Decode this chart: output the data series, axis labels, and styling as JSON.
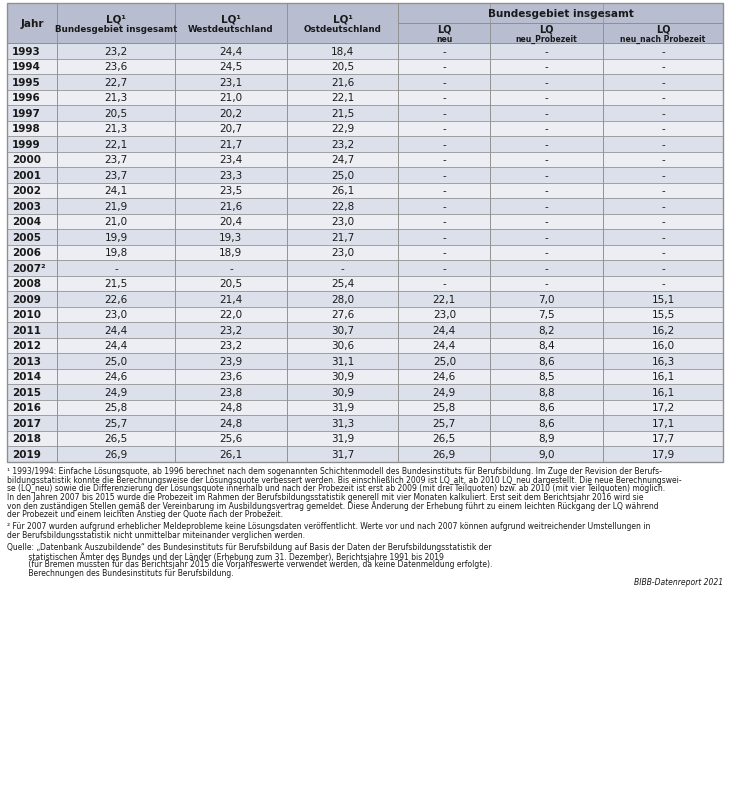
{
  "rows": [
    [
      "1993",
      "23,2",
      "24,4",
      "18,4",
      "-",
      "-",
      "-"
    ],
    [
      "1994",
      "23,6",
      "24,5",
      "20,5",
      "-",
      "-",
      "-"
    ],
    [
      "1995",
      "22,7",
      "23,1",
      "21,6",
      "-",
      "-",
      "-"
    ],
    [
      "1996",
      "21,3",
      "21,0",
      "22,1",
      "-",
      "-",
      "-"
    ],
    [
      "1997",
      "20,5",
      "20,2",
      "21,5",
      "-",
      "-",
      "-"
    ],
    [
      "1998",
      "21,3",
      "20,7",
      "22,9",
      "-",
      "-",
      "-"
    ],
    [
      "1999",
      "22,1",
      "21,7",
      "23,2",
      "-",
      "-",
      "-"
    ],
    [
      "2000",
      "23,7",
      "23,4",
      "24,7",
      "-",
      "-",
      "-"
    ],
    [
      "2001",
      "23,7",
      "23,3",
      "25,0",
      "-",
      "-",
      "-"
    ],
    [
      "2002",
      "24,1",
      "23,5",
      "26,1",
      "-",
      "-",
      "-"
    ],
    [
      "2003",
      "21,9",
      "21,6",
      "22,8",
      "-",
      "-",
      "-"
    ],
    [
      "2004",
      "21,0",
      "20,4",
      "23,0",
      "-",
      "-",
      "-"
    ],
    [
      "2005",
      "19,9",
      "19,3",
      "21,7",
      "-",
      "-",
      "-"
    ],
    [
      "2006",
      "19,8",
      "18,9",
      "23,0",
      "-",
      "-",
      "-"
    ],
    [
      "2007²",
      "-",
      "-",
      "-",
      "-",
      "-",
      "-"
    ],
    [
      "2008",
      "21,5",
      "20,5",
      "25,4",
      "-",
      "-",
      "-"
    ],
    [
      "2009",
      "22,6",
      "21,4",
      "28,0",
      "22,1",
      "7,0",
      "15,1"
    ],
    [
      "2010",
      "23,0",
      "22,0",
      "27,6",
      "23,0",
      "7,5",
      "15,5"
    ],
    [
      "2011",
      "24,4",
      "23,2",
      "30,7",
      "24,4",
      "8,2",
      "16,2"
    ],
    [
      "2012",
      "24,4",
      "23,2",
      "30,6",
      "24,4",
      "8,4",
      "16,0"
    ],
    [
      "2013",
      "25,0",
      "23,9",
      "31,1",
      "25,0",
      "8,6",
      "16,3"
    ],
    [
      "2014",
      "24,6",
      "23,6",
      "30,9",
      "24,6",
      "8,5",
      "16,1"
    ],
    [
      "2015",
      "24,9",
      "23,8",
      "30,9",
      "24,9",
      "8,8",
      "16,1"
    ],
    [
      "2016",
      "25,8",
      "24,8",
      "31,9",
      "25,8",
      "8,6",
      "17,2"
    ],
    [
      "2017",
      "25,7",
      "24,8",
      "31,3",
      "25,7",
      "8,6",
      "17,1"
    ],
    [
      "2018",
      "26,5",
      "25,6",
      "31,9",
      "26,5",
      "8,9",
      "17,7"
    ],
    [
      "2019",
      "26,9",
      "26,1",
      "31,7",
      "26,9",
      "9,0",
      "17,9"
    ]
  ],
  "footnote1_lines": [
    "¹ 1993/1994: Einfache Lösungsquote, ab 1996 berechnet nach dem sogenannten Schichtenmodell des Bundesinstituts für Berufsbildung. Im Zuge der Revision der Berufs-",
    "bildungsstatistik konnte die Berechnungsweise der Lösungsquote verbessert werden. Bis einschließlich 2009 ist LQ_alt, ab 2010 LQ_neu dargestellt. Die neue Berechnungswei-",
    "se (LQ_neu) sowie die Differenzierung der Lösungsquote innerhalb und nach der Probezeit ist erst ab 2009 (mit drei Teilquoten) bzw. ab 2010 (mit vier Teilquoten) möglich.",
    "In den Jahren 2007 bis 2015 wurde die Probezeit im Rahmen der Berufsbildungsstatistik generell mit vier Monaten kalkuliert. Erst seit dem Berichtsjahr 2016 wird sie",
    "von den zuständigen Stellen gemäß der Vereinbarung im Ausbildungsvertrag gemeldet. Diese Änderung der Erhebung führt zu einem leichten Rückgang der LQ während",
    "der Probezeit und einem leichten Anstieg der Quote nach der Probezeit."
  ],
  "footnote2_lines": [
    "² Für 2007 wurden aufgrund erheblicher Meldeprobleme keine Lösungsdaten veröffentlicht. Werte vor und nach 2007 können aufgrund weitreichender Umstellungen in",
    "der Berufsbildungsstatistik nicht unmittelbar miteinander verglichen werden."
  ],
  "source_lines": [
    "Quelle: „Datenbank Auszubildende“ des Bundesinstituts für Berufsbildung auf Basis der Daten der Berufsbildungsstatistik der",
    "         statistischen Ämter des Bundes und der Länder (Erhebung zum 31. Dezember), Berichtsjahre 1991 bis 2019",
    "         (für Bremen mussten für das Berichtsjahr 2015 die Vorjahreswerte verwendet werden, da keine Datenmeldung erfolgte).",
    "         Berechnungen des Bundesinstituts für Berufsbildung."
  ],
  "bibb": "BIBB-Datenreport 2021",
  "bg_even": "#dce0ea",
  "bg_odd": "#eceef4",
  "bg_header": "#b8bdd0",
  "border_color": "#909090",
  "text_dark": "#1a1a1a"
}
